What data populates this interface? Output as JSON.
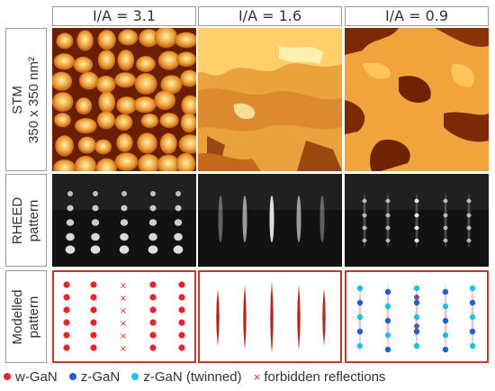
{
  "columns": [
    "I/A = 3.1",
    "I/A = 1.6",
    "I/A = 0.9"
  ],
  "rows": {
    "stm": {
      "label_line1": "STM",
      "label_line2": "350 x 350 nm²"
    },
    "rheed": {
      "label_line1": "RHEED",
      "label_line2": "pattern"
    },
    "model": {
      "label_line1": "Modelled",
      "label_line2": "pattern"
    }
  },
  "legend": {
    "items": [
      {
        "label": "w-GaN",
        "color": "#e8242a",
        "marker": "dot"
      },
      {
        "label": "z-GaN",
        "color": "#1f5fd1",
        "marker": "dot"
      },
      {
        "label": "z-GaN (twinned)",
        "color": "#19c3e6",
        "marker": "dot"
      },
      {
        "label": "forbidden reflections",
        "color": "#d62828",
        "marker": "cross"
      }
    ]
  },
  "colors": {
    "stm_dark": "#5a1a00",
    "stm_mid": "#d9761c",
    "stm_light": "#ffe07a",
    "model_border": "#c0392b",
    "streak": "#b02a18"
  }
}
